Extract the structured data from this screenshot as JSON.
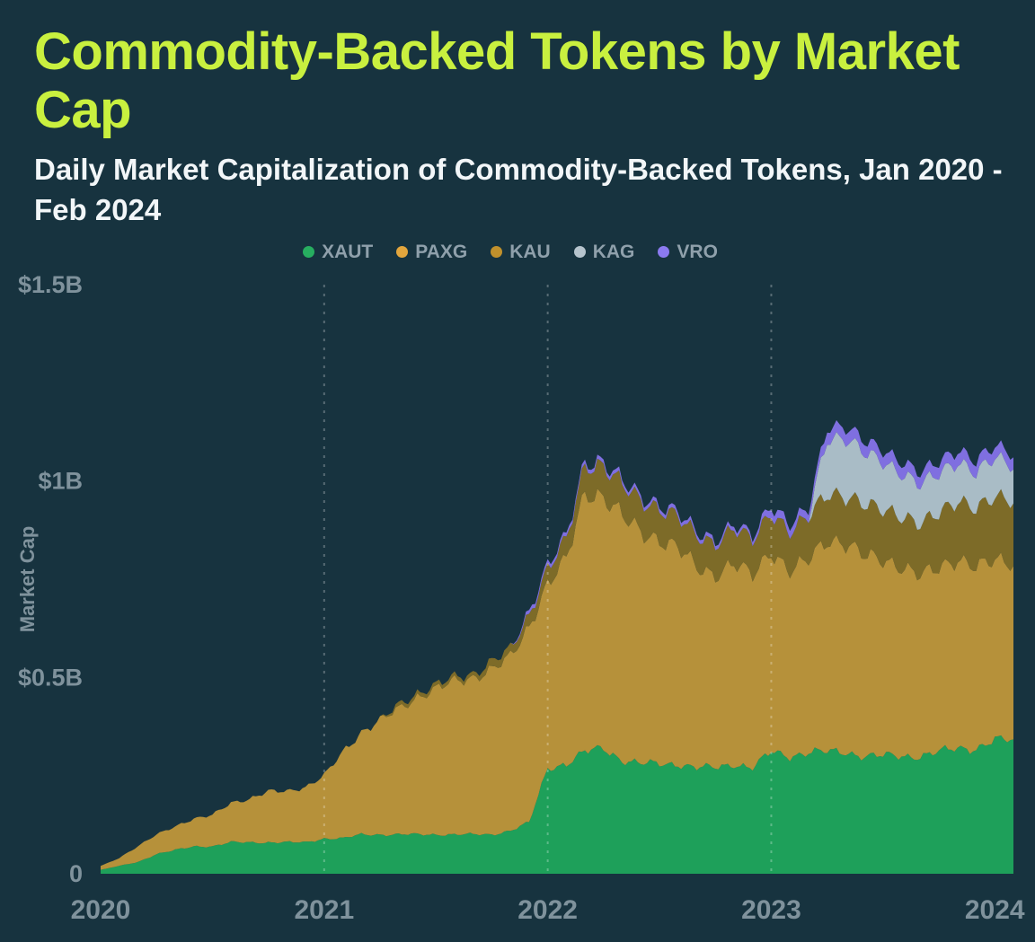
{
  "header": {
    "title": "Commodity-Backed Tokens by Market Cap",
    "subtitle": "Daily Market Capitalization of Commodity-Backed Tokens, Jan 2020 - Feb 2024"
  },
  "colors": {
    "background": "#17333f",
    "title": "#c9f03f",
    "subtitle": "#f2f6f8",
    "legend_text": "#8fa0ab",
    "axis_text": "#7f929c",
    "gridline": "rgba(255,255,255,0.28)"
  },
  "chart_data": {
    "type": "area",
    "stacked": true,
    "title": "Commodity-Backed Tokens by Market Cap",
    "subtitle": "Daily Market Capitalization of Commodity-Backed Tokens, Jan 2020 - Feb 2024",
    "ylabel": "Market Cap",
    "unit": "USD billions",
    "ylim": [
      0,
      1.5
    ],
    "y_tick_values": [
      0,
      0.5,
      1,
      1.5
    ],
    "y_tick_labels": [
      "0",
      "$0.5B",
      "$1B",
      "$1.5B"
    ],
    "x_tick_indices": [
      0,
      12,
      24,
      36,
      48
    ],
    "x_tick_labels": [
      "2020",
      "2021",
      "2022",
      "2023",
      "2024"
    ],
    "gridline_indices": [
      12,
      24,
      36
    ],
    "legend_position": "top",
    "x": [
      "2020-01",
      "2020-02",
      "2020-03",
      "2020-04",
      "2020-05",
      "2020-06",
      "2020-07",
      "2020-08",
      "2020-09",
      "2020-10",
      "2020-11",
      "2020-12",
      "2021-01",
      "2021-02",
      "2021-03",
      "2021-04",
      "2021-05",
      "2021-06",
      "2021-07",
      "2021-08",
      "2021-09",
      "2021-10",
      "2021-11",
      "2021-12",
      "2022-01",
      "2022-02",
      "2022-03",
      "2022-04",
      "2022-05",
      "2022-06",
      "2022-07",
      "2022-08",
      "2022-09",
      "2022-10",
      "2022-11",
      "2022-12",
      "2023-01",
      "2023-02",
      "2023-03",
      "2023-04",
      "2023-05",
      "2023-06",
      "2023-07",
      "2023-08",
      "2023-09",
      "2023-10",
      "2023-11",
      "2023-12",
      "2024-01",
      "2024-02"
    ],
    "series": [
      {
        "name": "XAUT",
        "color": "#27ae60",
        "fill": "#1ea05a",
        "values": [
          0.01,
          0.02,
          0.03,
          0.05,
          0.06,
          0.07,
          0.07,
          0.08,
          0.08,
          0.08,
          0.08,
          0.08,
          0.09,
          0.09,
          0.1,
          0.1,
          0.1,
          0.1,
          0.1,
          0.1,
          0.1,
          0.1,
          0.11,
          0.13,
          0.27,
          0.28,
          0.31,
          0.32,
          0.29,
          0.28,
          0.28,
          0.28,
          0.27,
          0.27,
          0.28,
          0.27,
          0.31,
          0.3,
          0.31,
          0.31,
          0.31,
          0.3,
          0.3,
          0.3,
          0.3,
          0.31,
          0.32,
          0.32,
          0.34,
          0.34
        ]
      },
      {
        "name": "PAXG",
        "color": "#e3a63d",
        "fill": "#b6913a",
        "values": [
          0.01,
          0.02,
          0.04,
          0.05,
          0.06,
          0.07,
          0.08,
          0.1,
          0.11,
          0.13,
          0.13,
          0.14,
          0.16,
          0.22,
          0.26,
          0.29,
          0.32,
          0.35,
          0.37,
          0.39,
          0.4,
          0.42,
          0.44,
          0.5,
          0.47,
          0.52,
          0.66,
          0.64,
          0.62,
          0.59,
          0.57,
          0.55,
          0.51,
          0.49,
          0.51,
          0.49,
          0.51,
          0.47,
          0.49,
          0.54,
          0.53,
          0.51,
          0.5,
          0.48,
          0.46,
          0.47,
          0.48,
          0.46,
          0.46,
          0.45
        ]
      },
      {
        "name": "KAU",
        "color": "#c1912c",
        "fill": "#7d6b28",
        "values": [
          0,
          0,
          0,
          0,
          0,
          0,
          0,
          0,
          0,
          0,
          0,
          0,
          0,
          0,
          0,
          0,
          0.01,
          0.01,
          0.01,
          0.01,
          0.01,
          0.02,
          0.02,
          0.03,
          0.04,
          0.05,
          0.07,
          0.08,
          0.08,
          0.08,
          0.08,
          0.08,
          0.08,
          0.08,
          0.09,
          0.09,
          0.1,
          0.1,
          0.11,
          0.12,
          0.12,
          0.13,
          0.13,
          0.13,
          0.13,
          0.14,
          0.15,
          0.15,
          0.16,
          0.16
        ]
      },
      {
        "name": "KAG",
        "color": "#b6c4cd",
        "fill": "#a9bcc6",
        "values": [
          0,
          0,
          0,
          0,
          0,
          0,
          0,
          0,
          0,
          0,
          0,
          0,
          0,
          0,
          0,
          0,
          0,
          0,
          0,
          0,
          0,
          0,
          0,
          0,
          0,
          0,
          0,
          0,
          0,
          0,
          0,
          0,
          0,
          0,
          0,
          0,
          0,
          0,
          0,
          0.14,
          0.15,
          0.13,
          0.12,
          0.11,
          0.1,
          0.1,
          0.1,
          0.09,
          0.1,
          0.09
        ]
      },
      {
        "name": "VRO",
        "color": "#8b7af0",
        "fill": "#7f6fe0",
        "values": [
          0,
          0,
          0,
          0,
          0,
          0,
          0,
          0,
          0,
          0,
          0,
          0,
          0,
          0,
          0,
          0,
          0,
          0,
          0,
          0,
          0,
          0,
          0,
          0.01,
          0.01,
          0.01,
          0.01,
          0.01,
          0.01,
          0.01,
          0.01,
          0.01,
          0.01,
          0.01,
          0.01,
          0.01,
          0.02,
          0.02,
          0.02,
          0.03,
          0.03,
          0.03,
          0.03,
          0.03,
          0.03,
          0.03,
          0.03,
          0.03,
          0.03,
          0.03
        ]
      }
    ]
  }
}
